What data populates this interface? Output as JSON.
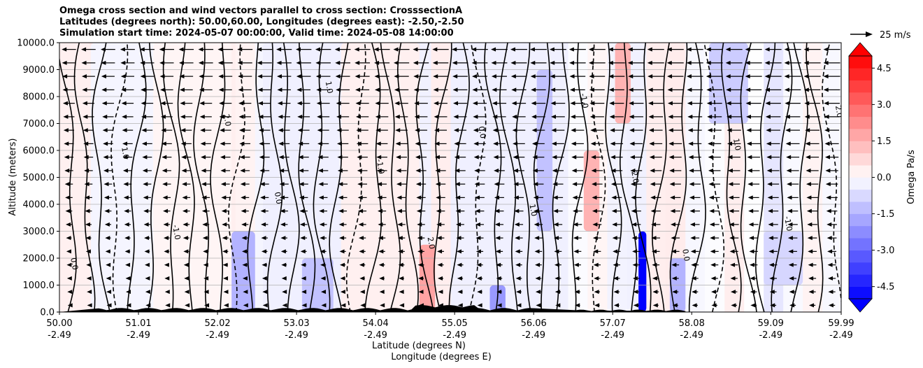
{
  "title_lines": [
    "Omega cross section and wind vectors parallel to cross section: CrosssectionA",
    "Latitudes (degrees north): 50.00,60.00, Longitudes (degrees east): -2.50,-2.50",
    "Simulation start time: 2024-05-07 00:00:00, Valid time: 2024-05-08 14:00:00"
  ],
  "chart_data": {
    "type": "heatmap",
    "ylabel": "Altitude (meters)",
    "xlabel_lines": [
      "Latitude (degrees N)",
      "Longitude (degrees E)"
    ],
    "ylim": [
      0,
      10000
    ],
    "yticks": [
      "0.0",
      "1000.0",
      "2000.0",
      "3000.0",
      "4000.0",
      "5000.0",
      "6000.0",
      "7000.0",
      "8000.0",
      "9000.0",
      "10000.0"
    ],
    "xticks": [
      {
        "lat": "50.00",
        "lon": "-2.49"
      },
      {
        "lat": "51.01",
        "lon": "-2.49"
      },
      {
        "lat": "52.02",
        "lon": "-2.49"
      },
      {
        "lat": "53.03",
        "lon": "-2.49"
      },
      {
        "lat": "54.04",
        "lon": "-2.49"
      },
      {
        "lat": "55.05",
        "lon": "-2.49"
      },
      {
        "lat": "56.06",
        "lon": "-2.49"
      },
      {
        "lat": "57.07",
        "lon": "-2.49"
      },
      {
        "lat": "58.08",
        "lon": "-2.49"
      },
      {
        "lat": "59.09",
        "lon": "-2.49"
      },
      {
        "lat": "59.99",
        "lon": "-2.49"
      }
    ],
    "grid": "horizontal",
    "colorbar": {
      "label": "Omega Pa/s",
      "range": [
        -5.0,
        5.0
      ],
      "ticks": [
        "-4.5",
        "-3.0",
        "-1.5",
        "0.0",
        "1.5",
        "3.0",
        "4.5"
      ],
      "colormap": "bwr",
      "extend": "both"
    },
    "quiver_key": {
      "label": "25 m/s"
    },
    "contour_labels": [
      "0.0",
      "1.0",
      "-1.0",
      "2.0"
    ],
    "regions": [
      {
        "lat_start": 50.0,
        "lat_end": 50.4,
        "alt_start": 0,
        "alt_end": 10000,
        "omega": 0.3
      },
      {
        "lat_start": 50.4,
        "lat_end": 51.2,
        "alt_start": 0,
        "alt_end": 10000,
        "omega": -0.2
      },
      {
        "lat_start": 51.2,
        "lat_end": 52.2,
        "alt_start": 0,
        "alt_end": 10000,
        "omega": 0.2
      },
      {
        "lat_start": 52.2,
        "lat_end": 52.5,
        "alt_start": 0,
        "alt_end": 3000,
        "omega": -1.5
      },
      {
        "lat_start": 52.6,
        "lat_end": 53.6,
        "alt_start": 0,
        "alt_end": 10000,
        "omega": -0.3
      },
      {
        "lat_start": 53.1,
        "lat_end": 53.5,
        "alt_start": 0,
        "alt_end": 2000,
        "omega": -1.2
      },
      {
        "lat_start": 53.6,
        "lat_end": 54.6,
        "alt_start": 0,
        "alt_end": 10000,
        "omega": 0.3
      },
      {
        "lat_start": 54.6,
        "lat_end": 54.8,
        "alt_start": 0,
        "alt_end": 2500,
        "omega": 1.8
      },
      {
        "lat_start": 55.0,
        "lat_end": 56.5,
        "alt_start": 0,
        "alt_end": 10000,
        "omega": -0.3
      },
      {
        "lat_start": 55.5,
        "lat_end": 55.7,
        "alt_start": 0,
        "alt_end": 1000,
        "omega": -2.0
      },
      {
        "lat_start": 56.1,
        "lat_end": 56.3,
        "alt_start": 3000,
        "alt_end": 9000,
        "omega": -1.2
      },
      {
        "lat_start": 56.7,
        "lat_end": 56.9,
        "alt_start": 3000,
        "alt_end": 6000,
        "omega": 1.5
      },
      {
        "lat_start": 57.1,
        "lat_end": 57.3,
        "alt_start": 7000,
        "alt_end": 10000,
        "omega": 1.5
      },
      {
        "lat_start": 57.4,
        "lat_end": 57.5,
        "alt_start": 0,
        "alt_end": 3000,
        "omega": -5.0
      },
      {
        "lat_start": 57.8,
        "lat_end": 58.0,
        "alt_start": 0,
        "alt_end": 2000,
        "omega": -1.5
      },
      {
        "lat_start": 58.3,
        "lat_end": 58.8,
        "alt_start": 7000,
        "alt_end": 10000,
        "omega": -1.0
      },
      {
        "lat_start": 59.0,
        "lat_end": 59.5,
        "alt_start": 1000,
        "alt_end": 3000,
        "omega": -0.8
      }
    ]
  },
  "colors": {
    "negative_strong": "#0000ff",
    "positive_strong": "#ff0000",
    "neutral": "#ffffff",
    "contour": "#000000",
    "terrain": "#000000",
    "grid": "#b0b0b0"
  }
}
